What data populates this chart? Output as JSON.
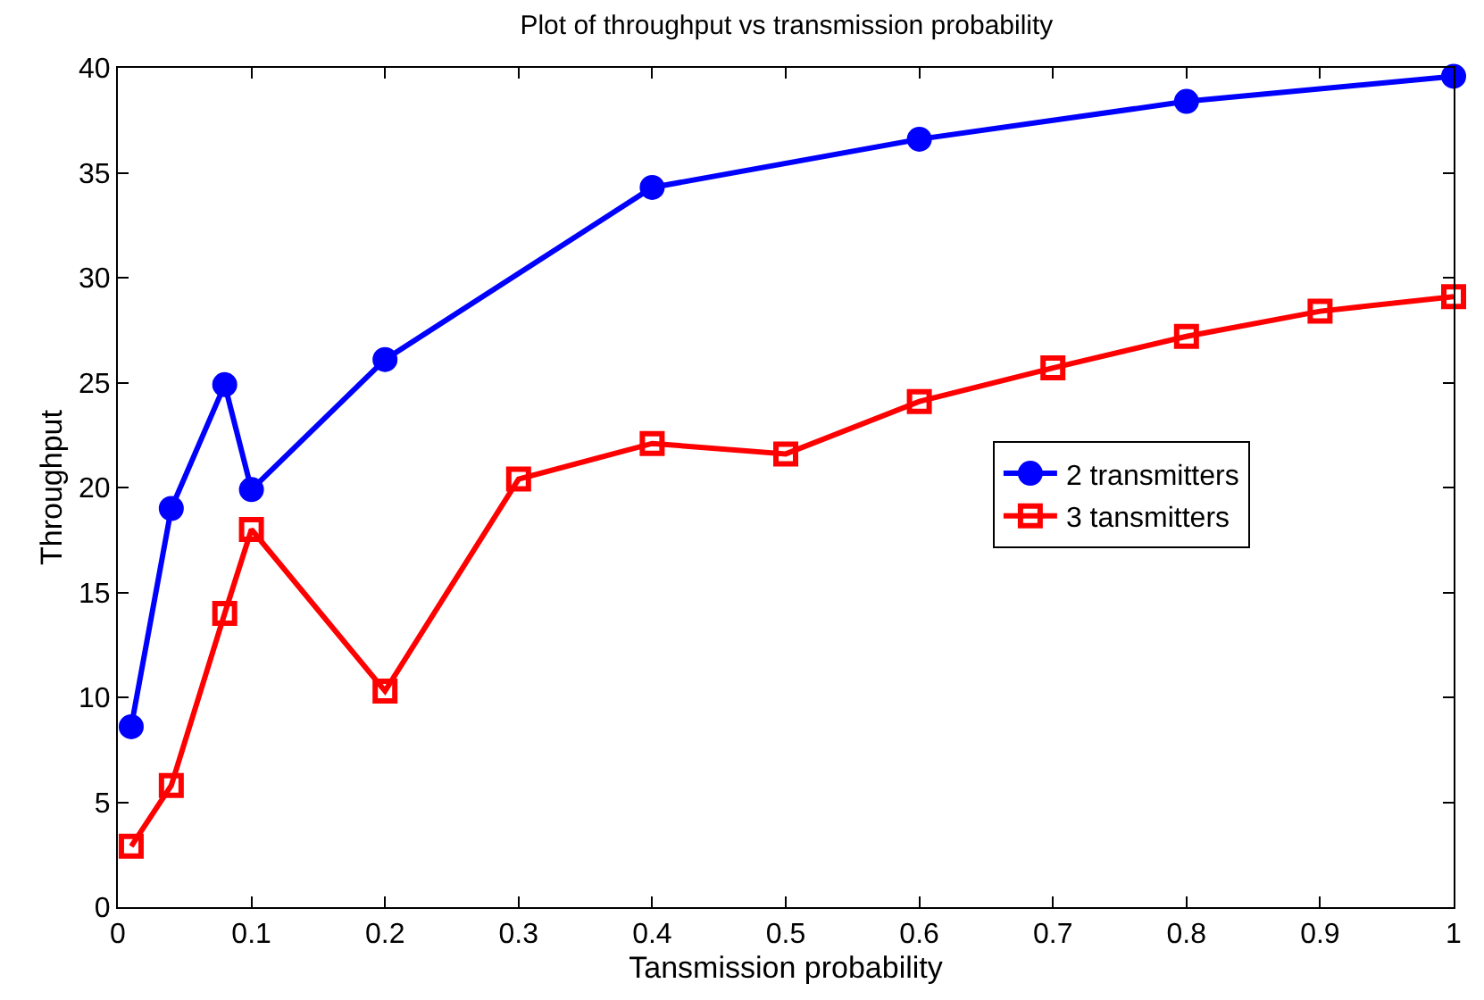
{
  "chart_data": {
    "type": "line",
    "title": "Plot of throughput vs transmission probability",
    "xlabel": "Tansmission probability",
    "ylabel": "Throughput",
    "x": [
      0.01,
      0.04,
      0.08,
      0.1,
      0.2,
      0.4,
      0.6,
      0.8,
      1
    ],
    "series": [
      {
        "name": "2 transmitters",
        "color": "#0000ff",
        "marker": "circle",
        "values": [
          8.6,
          19.0,
          24.9,
          19.9,
          26.1,
          34.3,
          36.6,
          38.4,
          39.6
        ]
      },
      {
        "name": "3 tansmitters",
        "color": "#ff0000",
        "marker": "square",
        "x": [
          0.01,
          0.04,
          0.08,
          0.1,
          0.2,
          0.3,
          0.4,
          0.5,
          0.6,
          0.7,
          0.8,
          0.9,
          1
        ],
        "values": [
          2.9,
          5.8,
          14.0,
          18.0,
          10.3,
          20.4,
          22.1,
          21.6,
          24.1,
          25.7,
          27.2,
          28.4,
          29.1
        ]
      }
    ],
    "xlim": [
      0,
      1
    ],
    "xticks": [
      0,
      0.1,
      0.2,
      0.3,
      0.4,
      0.5,
      0.6,
      0.7,
      0.8,
      0.9,
      1
    ],
    "ylim": [
      0,
      40
    ],
    "yticks": [
      0,
      5,
      10,
      15,
      20,
      25,
      30,
      35,
      40
    ],
    "grid": false,
    "legend": "right",
    "line_style": "solid"
  }
}
